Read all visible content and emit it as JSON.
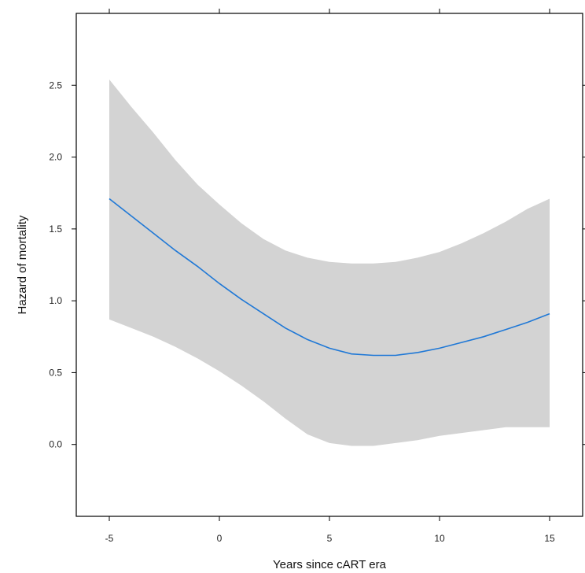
{
  "chart_data": {
    "type": "line",
    "xlabel": "Years since cART era",
    "ylabel": "Hazard of mortality",
    "xlim": [
      -6.5,
      16.5
    ],
    "ylim": [
      -0.5,
      3.0
    ],
    "xticks": [
      -5,
      0,
      5,
      10,
      15
    ],
    "xtick_labels": [
      "-5",
      "0",
      "5",
      "10",
      "15"
    ],
    "yticks": [
      0.0,
      0.5,
      1.0,
      1.5,
      2.0,
      2.5
    ],
    "ytick_labels": [
      "0.0",
      "0.5",
      "1.0",
      "1.5",
      "2.0",
      "2.5"
    ],
    "grid": false,
    "colors": {
      "line": "#1f78d6",
      "band": "#d3d3d3",
      "axis": "#000000"
    },
    "series": [
      {
        "x": [
          -5,
          -4,
          -3,
          -2,
          -1,
          0,
          1,
          2,
          3,
          4,
          5,
          6,
          7,
          8,
          9,
          10,
          11,
          12,
          13,
          14,
          15
        ],
        "y": [
          1.71,
          1.59,
          1.47,
          1.35,
          1.24,
          1.12,
          1.01,
          0.91,
          0.81,
          0.73,
          0.67,
          0.63,
          0.62,
          0.62,
          0.64,
          0.67,
          0.71,
          0.75,
          0.8,
          0.85,
          0.91
        ],
        "lower": [
          0.87,
          0.81,
          0.75,
          0.68,
          0.6,
          0.51,
          0.41,
          0.3,
          0.18,
          0.07,
          0.01,
          -0.01,
          -0.01,
          0.01,
          0.03,
          0.06,
          0.08,
          0.1,
          0.12,
          0.12,
          0.12
        ],
        "upper": [
          2.54,
          2.35,
          2.17,
          1.98,
          1.81,
          1.67,
          1.54,
          1.43,
          1.35,
          1.3,
          1.27,
          1.26,
          1.26,
          1.27,
          1.3,
          1.34,
          1.4,
          1.47,
          1.55,
          1.64,
          1.71
        ]
      }
    ]
  }
}
